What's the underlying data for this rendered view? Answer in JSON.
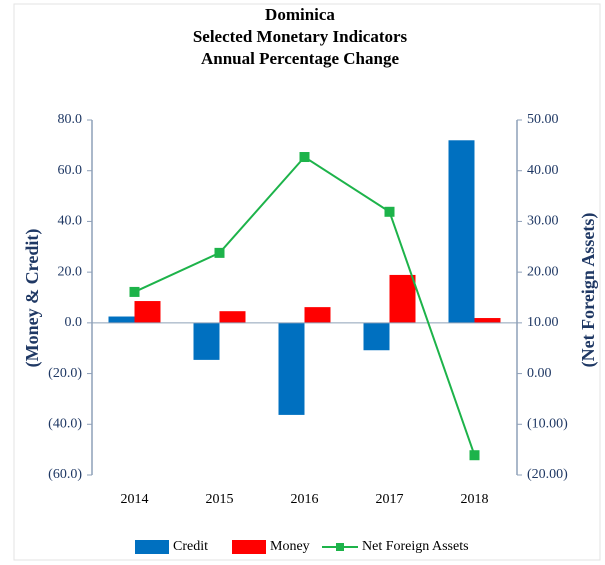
{
  "chart_data": {
    "type": "bar-line",
    "title": [
      "Dominica",
      "Selected Monetary Indicators",
      "Annual Percentage Change"
    ],
    "ylabel": "(Money & Credit)",
    "y2label": "(Net Foreign Assets)",
    "categories": [
      "2014",
      "2015",
      "2016",
      "2017",
      "2018"
    ],
    "series": [
      {
        "name": "Credit",
        "color": "#0070c0",
        "type": "bar",
        "values": [
          2.5,
          -14.6,
          -36.3,
          -10.8,
          72
        ]
      },
      {
        "name": "Money",
        "color": "#ff0000",
        "type": "bar",
        "values": [
          8.6,
          4.6,
          6.2,
          18.9,
          1.9
        ]
      },
      {
        "name": "Net Foreign Assets",
        "color": "#1db34a",
        "type": "line",
        "axis": "y2",
        "values": [
          16.1,
          23.8,
          42.7,
          31.9,
          -16.1
        ]
      }
    ],
    "ylim": [
      -60,
      80
    ],
    "yticks": [
      {
        "value": 80,
        "label": "80.0"
      },
      {
        "value": 60,
        "label": "60.0"
      },
      {
        "value": 40,
        "label": "40.0"
      },
      {
        "value": 20,
        "label": "20.0"
      },
      {
        "value": 0,
        "label": "0.0"
      },
      {
        "value": -20,
        "label": "(20.0)"
      },
      {
        "value": -40,
        "label": "(40.0)"
      },
      {
        "value": -60,
        "label": "(60.0)"
      }
    ],
    "y2lim": [
      -20,
      50
    ],
    "y2ticks": [
      {
        "value": 50,
        "label": "50.00"
      },
      {
        "value": 40,
        "label": "40.00"
      },
      {
        "value": 30,
        "label": "30.00"
      },
      {
        "value": 20,
        "label": "20.00"
      },
      {
        "value": 10,
        "label": "10.00"
      },
      {
        "value": 0,
        "label": "0.00"
      },
      {
        "value": -10,
        "label": "(10.00)"
      },
      {
        "value": -20,
        "label": "(20.00)"
      }
    ],
    "grid": false,
    "legend": "bottom"
  }
}
